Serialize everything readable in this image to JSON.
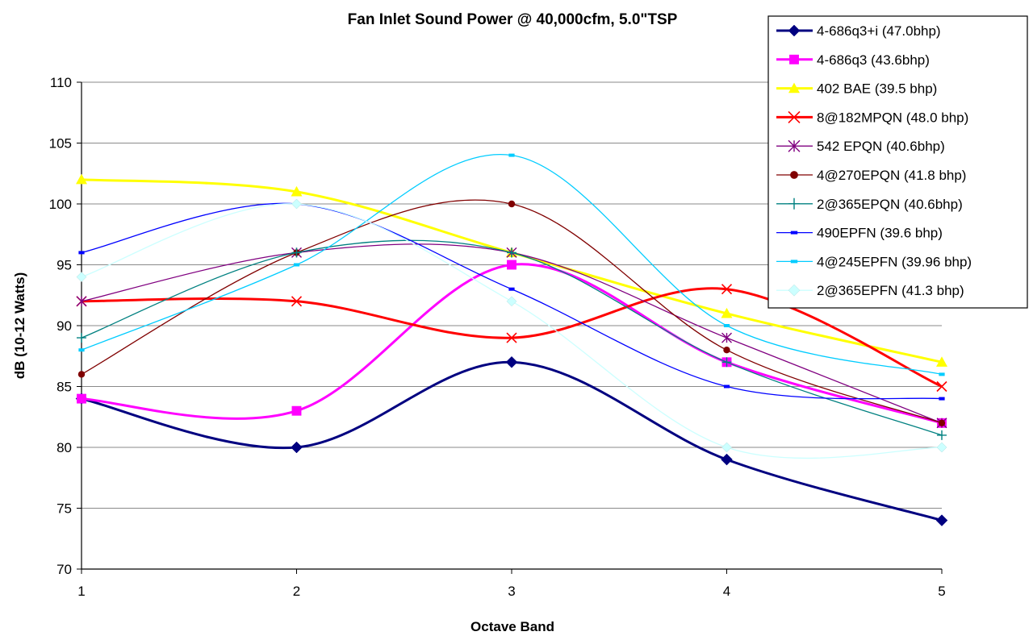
{
  "chart_data": {
    "type": "line",
    "title": "Fan Inlet Sound Power @ 40,000cfm, 5.0\"TSP",
    "xlabel": "Octave Band",
    "ylabel": "dB (10-12 Watts)",
    "x": [
      1,
      2,
      3,
      4,
      5
    ],
    "xlim": [
      1,
      5
    ],
    "ylim": [
      70,
      110
    ],
    "y_ticks": [
      70,
      75,
      80,
      85,
      90,
      95,
      100,
      105,
      110
    ],
    "x_ticks": [
      1,
      2,
      3,
      4,
      5
    ],
    "grid": "horizontal",
    "legend_position": "top-right",
    "series": [
      {
        "name": "4-686q3+i (47.0bhp)",
        "values": [
          84,
          80,
          87,
          79,
          74
        ],
        "color": "#000080",
        "marker": "diamond"
      },
      {
        "name": "4-686q3 (43.6bhp)",
        "values": [
          84,
          83,
          95,
          87,
          82
        ],
        "color": "#ff00ff",
        "marker": "square"
      },
      {
        "name": "402 BAE (39.5 bhp)",
        "values": [
          102,
          101,
          96,
          91,
          87
        ],
        "color": "#ffff00",
        "marker": "triangle"
      },
      {
        "name": "8@182MPQN (48.0 bhp)",
        "values": [
          92,
          92,
          89,
          93,
          85
        ],
        "color": "#ff0000",
        "marker": "x"
      },
      {
        "name": "542 EPQN (40.6bhp)",
        "values": [
          92,
          96,
          96,
          89,
          82
        ],
        "color": "#800080",
        "marker": "asterisk"
      },
      {
        "name": "4@270EPQN (41.8 bhp)",
        "values": [
          86,
          96,
          100,
          88,
          82
        ],
        "color": "#800000",
        "marker": "circle"
      },
      {
        "name": "2@365EPQN (40.6bhp)",
        "values": [
          89,
          96,
          96,
          87,
          81
        ],
        "color": "#008080",
        "marker": "plus"
      },
      {
        "name": "490EPFN (39.6 bhp)",
        "values": [
          96,
          100,
          93,
          85,
          84
        ],
        "color": "#0000ff",
        "marker": "dash"
      },
      {
        "name": "4@245EPFN (39.96 bhp)",
        "values": [
          88,
          95,
          104,
          90,
          86
        ],
        "color": "#00ccff",
        "marker": "dash"
      },
      {
        "name": "2@365EPFN (41.3 bhp)",
        "values": [
          94,
          100,
          92,
          80,
          80
        ],
        "color": "#ccffff",
        "marker": "diamond"
      }
    ]
  }
}
